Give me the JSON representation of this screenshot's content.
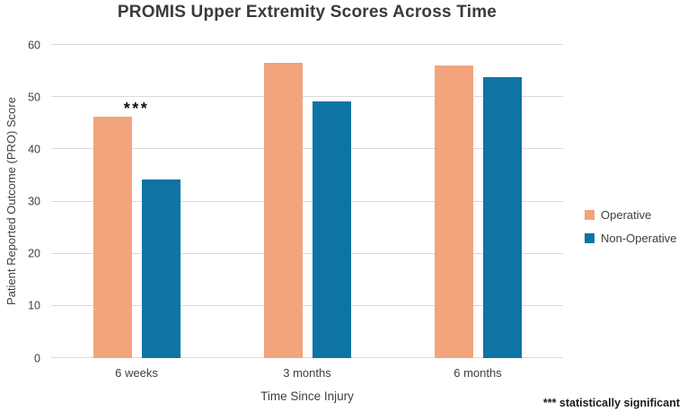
{
  "chart_data": {
    "type": "bar",
    "title": "PROMIS Upper Extremity Scores Across Time",
    "categories": [
      "6 weeks",
      "3 months",
      "6 months"
    ],
    "series": [
      {
        "name": "Operative",
        "color": "#F2A47D",
        "values": [
          46.3,
          56.6,
          56.0
        ]
      },
      {
        "name": "Non-Operative",
        "color": "#0E74A4",
        "values": [
          34.2,
          49.1,
          53.8
        ]
      }
    ],
    "xlabel": "Time Since Injury",
    "ylabel": "Patient Reported Outcome (PRO) Score",
    "ylim": [
      0,
      60
    ],
    "yticks": [
      0,
      10,
      20,
      30,
      40,
      50,
      60
    ],
    "grid": "horizontal",
    "legend_position": "right",
    "annotations": [
      {
        "text": "***",
        "category": "6 weeks",
        "series": "Operative"
      }
    ]
  },
  "footnote": "*** statistically significant",
  "colors": {
    "grid": "#D9D9D9",
    "axis_text": "#404040",
    "title_text": "#3A3A3A",
    "operative": "#F2A47D",
    "non_operative": "#0E74A4"
  }
}
